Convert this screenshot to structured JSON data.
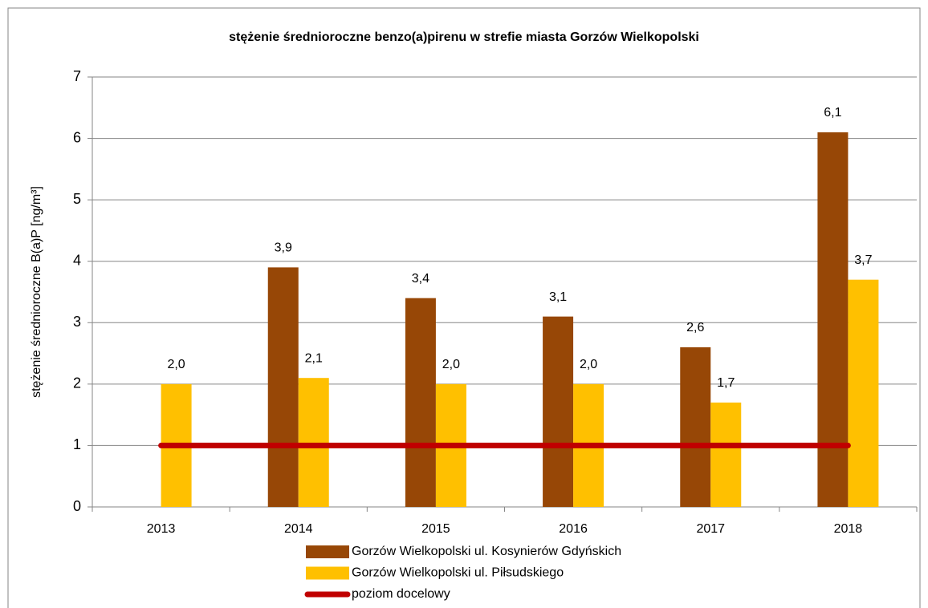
{
  "chart_data": {
    "type": "bar",
    "title": "stężenie średnioroczne benzo(a)pirenu w strefie miasta Gorzów Wielkopolski",
    "y_label": "stężenie średnioroczne B(a)P [ng/m³]",
    "categories": [
      "2013",
      "2014",
      "2015",
      "2016",
      "2017",
      "2018"
    ],
    "series": [
      {
        "name": "Gorzów Wielkopolski ul. Kosynierów Gdyńskich",
        "color": "#974706",
        "values": [
          null,
          3.9,
          3.4,
          3.1,
          2.6,
          6.1
        ],
        "value_labels": [
          null,
          "3,9",
          "3,4",
          "3,1",
          "2,6",
          "6,1"
        ]
      },
      {
        "name": "Gorzów Wielkopolski ul. Piłsudskiego",
        "color": "#FFC000",
        "values": [
          2.0,
          2.1,
          2.0,
          2.0,
          1.7,
          3.7
        ],
        "value_labels": [
          "2,0",
          "2,1",
          "2,0",
          "2,0",
          "1,7",
          "3,7"
        ]
      },
      {
        "name": "poziom docelowy",
        "color": "#C00000",
        "type": "line",
        "values": [
          1,
          1,
          1,
          1,
          1,
          1
        ]
      }
    ],
    "ylim": [
      0,
      7
    ],
    "yticks": [
      0,
      1,
      2,
      3,
      4,
      5,
      6,
      7
    ],
    "grid": true
  }
}
